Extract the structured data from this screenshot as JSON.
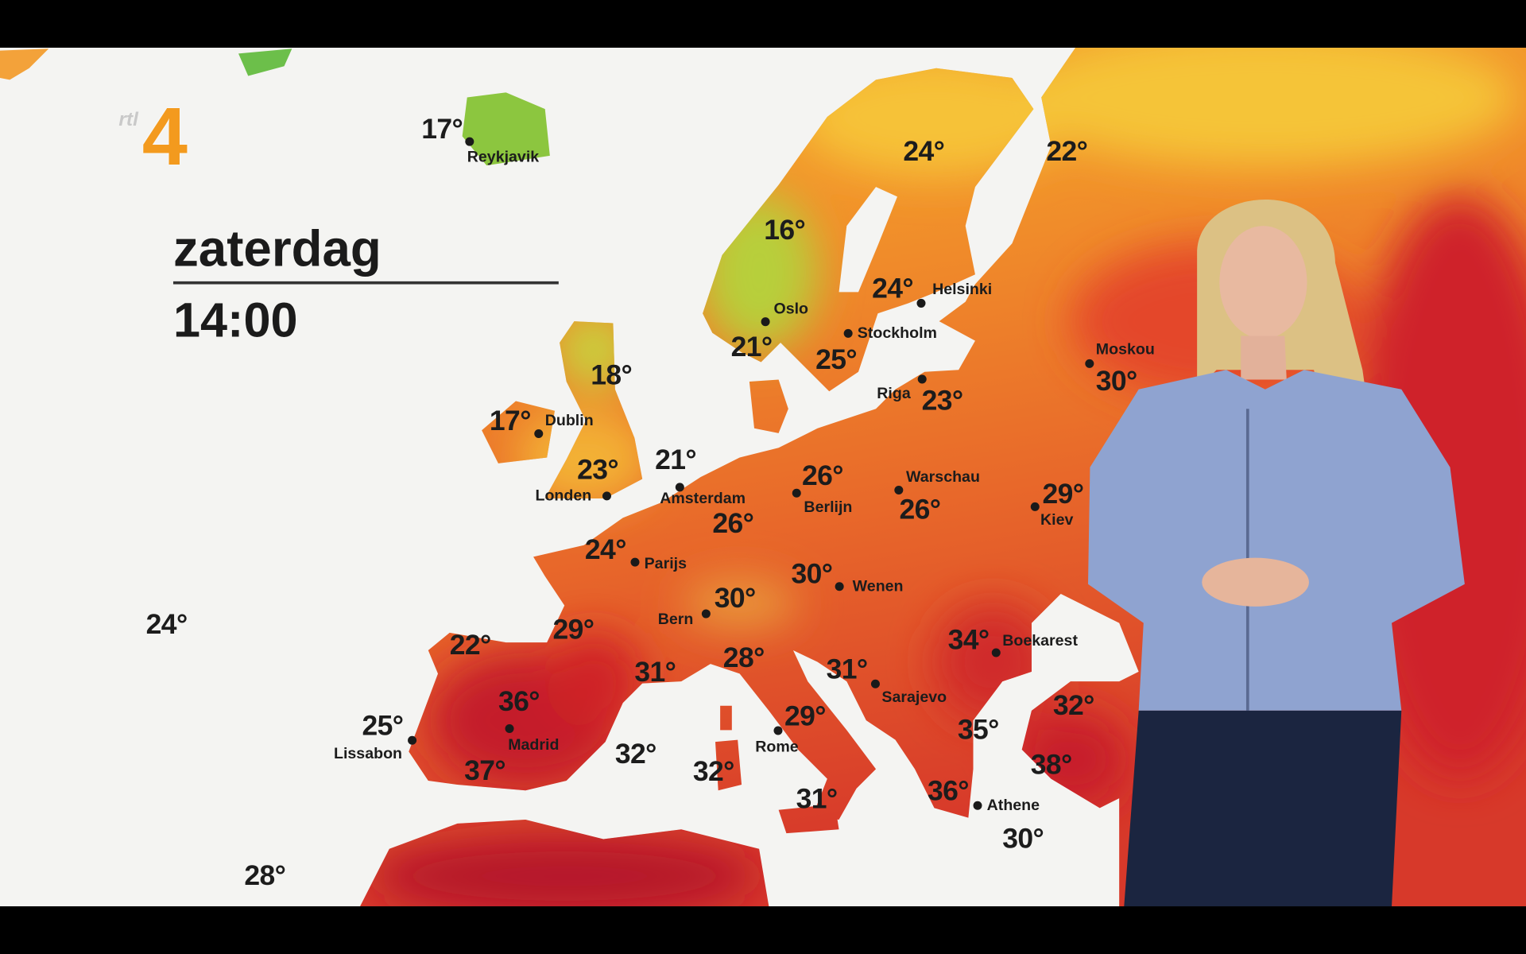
{
  "broadcast": {
    "logo": {
      "text_small": "rtl",
      "text_number": "4"
    },
    "day": "zaterdag",
    "time": "14:00"
  },
  "colors": {
    "letterbox": "#000000",
    "sea": "#f4f4f2",
    "cool": "#8cc63f",
    "warm": "#f5b233",
    "hot": "#ee7a22",
    "very_hot": "#c81f2a",
    "presenter_jacket": "#8fa3d0"
  },
  "labels": [
    {
      "temp": "17°",
      "city": "Reykjavik"
    },
    {
      "temp": "24°"
    },
    {
      "temp": "22°"
    },
    {
      "temp": "16°"
    },
    {
      "temp": "24°",
      "city": "Helsinki"
    },
    {
      "temp": "21°",
      "city": "Oslo"
    },
    {
      "temp": "25°",
      "city": "Stockholm"
    },
    {
      "temp": "18°"
    },
    {
      "temp": "23°",
      "city": "Riga"
    },
    {
      "temp": "30°",
      "city": "Moskou"
    },
    {
      "temp": "17°",
      "city": "Dublin"
    },
    {
      "temp": "23°",
      "city": "Londen"
    },
    {
      "temp": "21°",
      "city": "Amsterdam"
    },
    {
      "temp": "26°",
      "city": "Berlijn"
    },
    {
      "temp": "26°",
      "city": "Warschau"
    },
    {
      "temp": "26°"
    },
    {
      "temp": "29°",
      "city": "Kiev"
    },
    {
      "temp": "24°",
      "city": "Parijs"
    },
    {
      "temp": "30°",
      "city": "Wenen"
    },
    {
      "temp": "30°",
      "city": "Bern"
    },
    {
      "temp": "24°"
    },
    {
      "temp": "29°"
    },
    {
      "temp": "34°",
      "city": "Boekarest"
    },
    {
      "temp": "22°"
    },
    {
      "temp": "28°"
    },
    {
      "temp": "31°"
    },
    {
      "temp": "31°",
      "city": "Sarajevo"
    },
    {
      "temp": "36°",
      "city": "Madrid"
    },
    {
      "temp": "32°"
    },
    {
      "temp": "29°",
      "city": "Rome"
    },
    {
      "temp": "25°",
      "city": "Lissabon"
    },
    {
      "temp": "35°"
    },
    {
      "temp": "32°"
    },
    {
      "temp": "37°"
    },
    {
      "temp": "32°"
    },
    {
      "temp": "38°"
    },
    {
      "temp": "36°",
      "city": "Athene"
    },
    {
      "temp": "31°"
    },
    {
      "temp": "30°"
    },
    {
      "temp": "28°"
    }
  ]
}
